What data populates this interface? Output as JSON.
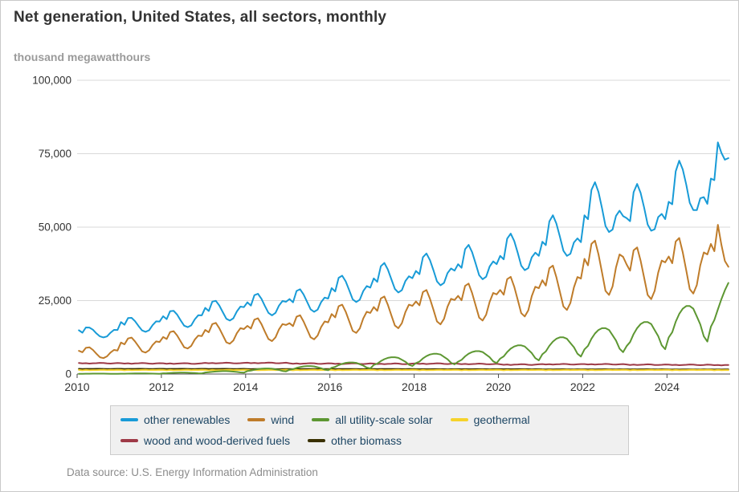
{
  "chart_data": {
    "type": "line",
    "title": "Net generation, United States, all sectors, monthly",
    "ylabel": "thousand megawatthours",
    "source": "Data source: U.S. Energy Information Administration",
    "x_start": 2010,
    "x_interval": "month",
    "points_per_year": 12,
    "xlim": [
      2010,
      2025.5
    ],
    "ylim": [
      0,
      100000
    ],
    "grid": "horizontal",
    "legend_position": "bottom-center",
    "y_ticks": [
      0,
      25000,
      50000,
      75000,
      100000
    ],
    "y_tick_labels": [
      "0",
      "25,000",
      "50,000",
      "75,000",
      "100,000"
    ],
    "x_ticks": [
      2010,
      2012,
      2014,
      2016,
      2018,
      2020,
      2022,
      2024
    ],
    "series": [
      {
        "name": "other renewables",
        "color": "#189bd7",
        "values": [
          14890,
          14080,
          15840,
          15820,
          15080,
          13830,
          12810,
          12450,
          12780,
          14050,
          15030,
          15000,
          17680,
          16770,
          19040,
          19120,
          17990,
          16350,
          14830,
          14360,
          14890,
          16640,
          17920,
          17880,
          19670,
          18680,
          21390,
          21500,
          20190,
          18260,
          16440,
          15960,
          16560,
          18580,
          20010,
          19960,
          22500,
          21450,
          24640,
          24910,
          23340,
          21030,
          18810,
          18210,
          18950,
          21310,
          22950,
          22760,
          24390,
          23310,
          26840,
          27320,
          25610,
          23140,
          20820,
          19980,
          20820,
          23280,
          24850,
          24590,
          25530,
          24410,
          28270,
          28840,
          27100,
          24550,
          22030,
          21170,
          21910,
          24480,
          26010,
          25680,
          29240,
          28120,
          32770,
          33480,
          31540,
          28540,
          25420,
          24510,
          25300,
          28230,
          29940,
          29420,
          32550,
          31370,
          36690,
          37810,
          35600,
          32270,
          28950,
          27770,
          28560,
          31680,
          33280,
          32620,
          35080,
          33990,
          39790,
          41050,
          38730,
          35240,
          31520,
          30200,
          31050,
          34340,
          35930,
          35180,
          37370,
          36150,
          42490,
          43950,
          41500,
          37650,
          33630,
          32270,
          33120,
          36600,
          38330,
          37410,
          40220,
          39050,
          46090,
          47780,
          45280,
          41200,
          36880,
          35350,
          36070,
          39730,
          41310,
          40240,
          45040,
          43880,
          51940,
          54040,
          51250,
          46780,
          41960,
          40220,
          40930,
          44770,
          46170,
          44890,
          54020,
          52700,
          62640,
          65300,
          61950,
          56400,
          50380,
          48320,
          49170,
          53850,
          55600,
          53780,
          53090,
          52030,
          61890,
          64690,
          61700,
          56630,
          50910,
          48770,
          49280,
          53420,
          54500,
          52720,
          58630,
          57790,
          68990,
          72620,
          69650,
          64390,
          58270,
          55820,
          55800,
          59810,
          60230,
          57930,
          66520,
          66000,
          78840,
          75300,
          72950,
          73500
        ]
      },
      {
        "name": "wind",
        "color": "#bf7c2a",
        "values": [
          7900,
          7400,
          8900,
          9100,
          8200,
          6900,
          5700,
          5400,
          6000,
          7300,
          8200,
          8000,
          10700,
          10100,
          12100,
          12400,
          11100,
          9400,
          7700,
          7300,
          8100,
          9900,
          11100,
          10900,
          12600,
          11900,
          14300,
          14600,
          13100,
          11100,
          9100,
          8700,
          9600,
          11700,
          13100,
          12900,
          15000,
          14200,
          17000,
          17400,
          15600,
          13200,
          10800,
          10300,
          11400,
          13900,
          15600,
          15300,
          16400,
          15500,
          18500,
          19000,
          17000,
          14400,
          11900,
          11200,
          12500,
          15200,
          17000,
          16700,
          17300,
          16300,
          19500,
          20000,
          17900,
          15200,
          12500,
          11800,
          13100,
          16000,
          17900,
          17600,
          20400,
          19300,
          23100,
          23600,
          21200,
          18000,
          14700,
          14000,
          15500,
          18900,
          21200,
          20800,
          22800,
          21500,
          25700,
          26400,
          23600,
          20000,
          16500,
          15600,
          17300,
          21100,
          23600,
          23200,
          24700,
          23400,
          27900,
          28600,
          25600,
          21800,
          17900,
          16900,
          18800,
          22900,
          25600,
          25200,
          26600,
          25100,
          30000,
          30800,
          27600,
          23400,
          19200,
          18200,
          20200,
          24600,
          27600,
          27100,
          28600,
          27000,
          32300,
          33100,
          29700,
          25200,
          20700,
          19600,
          21700,
          26500,
          29700,
          29200,
          31900,
          30100,
          36000,
          36900,
          33000,
          28000,
          23000,
          21800,
          24200,
          29500,
          33000,
          32500,
          39200,
          37000,
          44300,
          45400,
          40700,
          34500,
          28300,
          26900,
          29800,
          36300,
          40700,
          39900,
          37300,
          35200,
          42100,
          43100,
          38600,
          32800,
          26900,
          25500,
          28300,
          34500,
          38600,
          38000,
          40000,
          37700,
          45100,
          46300,
          41400,
          35200,
          28900,
          27400,
          30300,
          37000,
          41400,
          40700,
          44300,
          41800,
          50800,
          44000,
          38500,
          36500
        ]
      },
      {
        "name": "all utility-scale solar",
        "color": "#5d9732",
        "values": [
          70,
          80,
          100,
          115,
          125,
          130,
          130,
          125,
          110,
          95,
          72,
          62,
          105,
          120,
          150,
          173,
          188,
          195,
          195,
          188,
          165,
          143,
          108,
          93,
          245,
          280,
          350,
          400,
          440,
          455,
          455,
          440,
          385,
          330,
          250,
          215,
          525,
          600,
          750,
          860,
          940,
          975,
          975,
          940,
          825,
          710,
          540,
          465,
          1015,
          1160,
          1450,
          1670,
          1810,
          1890,
          1890,
          1810,
          1600,
          1380,
          1040,
          900,
          1460,
          1660,
          2080,
          2390,
          2600,
          2700,
          2700,
          2600,
          2290,
          1980,
          1500,
          1290,
          2120,
          2420,
          3030,
          3480,
          3790,
          3940,
          3940,
          3790,
          3330,
          2880,
          2180,
          1880,
          3080,
          3520,
          4400,
          5060,
          5500,
          5720,
          5720,
          5500,
          4840,
          4180,
          3170,
          2730,
          3710,
          4240,
          5300,
          6100,
          6630,
          6890,
          6890,
          6630,
          5830,
          5040,
          3820,
          3290,
          4200,
          4800,
          6000,
          6900,
          7500,
          7800,
          7800,
          7500,
          6600,
          5700,
          4320,
          3720,
          5250,
          6000,
          7500,
          8630,
          9380,
          9750,
          9750,
          9380,
          8250,
          7130,
          5400,
          4650,
          6720,
          7680,
          9600,
          11040,
          12000,
          12480,
          12480,
          12000,
          10560,
          9120,
          6910,
          5950,
          8400,
          9600,
          12000,
          13800,
          15000,
          15600,
          15600,
          15000,
          13200,
          11400,
          8640,
          7440,
          9520,
          10880,
          13600,
          15640,
          17000,
          17680,
          17680,
          17000,
          14960,
          12920,
          9790,
          8430,
          12460,
          14240,
          17800,
          20470,
          22250,
          23140,
          23140,
          22250,
          19580,
          16910,
          12820,
          11040,
          16100,
          18400,
          22000,
          25500,
          28500,
          31000
        ]
      },
      {
        "name": "geothermal",
        "color": "#f6d32b",
        "values": [
          1400,
          1270,
          1380,
          1310,
          1350,
          1330,
          1400,
          1410,
          1340,
          1380,
          1360,
          1420,
          1400,
          1270,
          1380,
          1310,
          1350,
          1330,
          1400,
          1410,
          1340,
          1380,
          1360,
          1420,
          1400,
          1270,
          1380,
          1310,
          1350,
          1330,
          1400,
          1410,
          1340,
          1380,
          1360,
          1420,
          1400,
          1270,
          1380,
          1310,
          1350,
          1330,
          1400,
          1410,
          1340,
          1380,
          1360,
          1420,
          1400,
          1270,
          1380,
          1310,
          1350,
          1330,
          1400,
          1410,
          1340,
          1380,
          1360,
          1420,
          1400,
          1270,
          1380,
          1310,
          1350,
          1330,
          1400,
          1410,
          1340,
          1380,
          1360,
          1420,
          1400,
          1270,
          1380,
          1310,
          1350,
          1330,
          1400,
          1410,
          1340,
          1380,
          1360,
          1420,
          1400,
          1270,
          1380,
          1310,
          1350,
          1330,
          1400,
          1410,
          1340,
          1380,
          1360,
          1420,
          1400,
          1270,
          1380,
          1310,
          1350,
          1330,
          1400,
          1410,
          1340,
          1380,
          1360,
          1420,
          1400,
          1270,
          1380,
          1310,
          1350,
          1330,
          1400,
          1410,
          1340,
          1380,
          1360,
          1420,
          1400,
          1270,
          1380,
          1310,
          1350,
          1330,
          1400,
          1410,
          1340,
          1380,
          1360,
          1420,
          1400,
          1270,
          1380,
          1310,
          1350,
          1330,
          1400,
          1410,
          1340,
          1380,
          1360,
          1420,
          1400,
          1270,
          1380,
          1310,
          1350,
          1330,
          1400,
          1410,
          1340,
          1380,
          1360,
          1420,
          1400,
          1270,
          1380,
          1310,
          1350,
          1330,
          1400,
          1410,
          1340,
          1380,
          1360,
          1420,
          1400,
          1270,
          1380,
          1310,
          1350,
          1330,
          1400,
          1410,
          1340,
          1380,
          1360,
          1420,
          1400,
          1270,
          1380,
          1310,
          1350,
          1330
        ]
      },
      {
        "name": "wood and wood-derived fuels",
        "color": "#9e3a47",
        "values": [
          3750,
          3600,
          3700,
          3550,
          3650,
          3700,
          3800,
          3750,
          3600,
          3550,
          3650,
          3750,
          3700,
          3550,
          3650,
          3500,
          3600,
          3650,
          3750,
          3700,
          3550,
          3500,
          3600,
          3700,
          3650,
          3500,
          3600,
          3450,
          3550,
          3600,
          3700,
          3650,
          3500,
          3450,
          3550,
          3650,
          3800,
          3650,
          3750,
          3600,
          3700,
          3750,
          3850,
          3800,
          3650,
          3600,
          3700,
          3800,
          3850,
          3700,
          3800,
          3650,
          3750,
          3800,
          3900,
          3850,
          3700,
          3650,
          3750,
          3850,
          3650,
          3500,
          3600,
          3450,
          3550,
          3600,
          3700,
          3650,
          3500,
          3450,
          3550,
          3650,
          3600,
          3450,
          3550,
          3400,
          3500,
          3550,
          3650,
          3600,
          3450,
          3400,
          3500,
          3600,
          3550,
          3400,
          3500,
          3350,
          3450,
          3500,
          3600,
          3550,
          3400,
          3350,
          3450,
          3550,
          3600,
          3450,
          3550,
          3400,
          3500,
          3550,
          3650,
          3600,
          3450,
          3400,
          3500,
          3600,
          3500,
          3350,
          3450,
          3300,
          3400,
          3450,
          3550,
          3500,
          3350,
          3300,
          3400,
          3500,
          3300,
          3150,
          3250,
          3100,
          3200,
          3250,
          3350,
          3300,
          3150,
          3100,
          3200,
          3300,
          3400,
          3250,
          3350,
          3200,
          3300,
          3350,
          3450,
          3400,
          3250,
          3200,
          3300,
          3400,
          3400,
          3250,
          3350,
          3200,
          3300,
          3350,
          3450,
          3400,
          3250,
          3200,
          3300,
          3400,
          3250,
          3100,
          3200,
          3050,
          3150,
          3200,
          3300,
          3250,
          3100,
          3050,
          3150,
          3250,
          3200,
          3050,
          3150,
          3000,
          3100,
          3150,
          3250,
          3200,
          3050,
          3000,
          3100,
          3200,
          3150,
          3000,
          3100,
          2950,
          3050,
          3100
        ]
      },
      {
        "name": "other biomass",
        "color": "#3a3000",
        "values": [
          1770,
          1730,
          1760,
          1740,
          1750,
          1770,
          1780,
          1760,
          1730,
          1720,
          1750,
          1770,
          1770,
          1730,
          1760,
          1740,
          1750,
          1770,
          1780,
          1760,
          1730,
          1720,
          1750,
          1770,
          1770,
          1730,
          1760,
          1740,
          1750,
          1770,
          1780,
          1760,
          1730,
          1720,
          1750,
          1770,
          1770,
          1730,
          1760,
          1740,
          1750,
          1770,
          1780,
          1760,
          1730,
          1720,
          1750,
          1770,
          1720,
          1680,
          1710,
          1690,
          1700,
          1720,
          1730,
          1710,
          1680,
          1670,
          1700,
          1720,
          1720,
          1680,
          1710,
          1690,
          1700,
          1720,
          1730,
          1710,
          1680,
          1670,
          1700,
          1720,
          1720,
          1680,
          1710,
          1690,
          1700,
          1720,
          1730,
          1710,
          1680,
          1670,
          1700,
          1720,
          1720,
          1680,
          1710,
          1690,
          1700,
          1720,
          1730,
          1710,
          1680,
          1670,
          1700,
          1720,
          1670,
          1630,
          1660,
          1640,
          1650,
          1670,
          1680,
          1660,
          1630,
          1620,
          1650,
          1670,
          1670,
          1630,
          1660,
          1640,
          1650,
          1670,
          1680,
          1660,
          1630,
          1620,
          1650,
          1670,
          1670,
          1630,
          1660,
          1640,
          1650,
          1670,
          1680,
          1660,
          1630,
          1620,
          1650,
          1670,
          1620,
          1580,
          1610,
          1590,
          1600,
          1620,
          1630,
          1610,
          1580,
          1570,
          1600,
          1620,
          1620,
          1580,
          1610,
          1590,
          1600,
          1620,
          1630,
          1610,
          1580,
          1570,
          1600,
          1620,
          1620,
          1580,
          1610,
          1590,
          1600,
          1620,
          1630,
          1610,
          1580,
          1570,
          1600,
          1620,
          1570,
          1530,
          1560,
          1540,
          1550,
          1570,
          1580,
          1560,
          1530,
          1520,
          1550,
          1570,
          1570,
          1530,
          1560,
          1540,
          1550,
          1570
        ]
      }
    ]
  }
}
